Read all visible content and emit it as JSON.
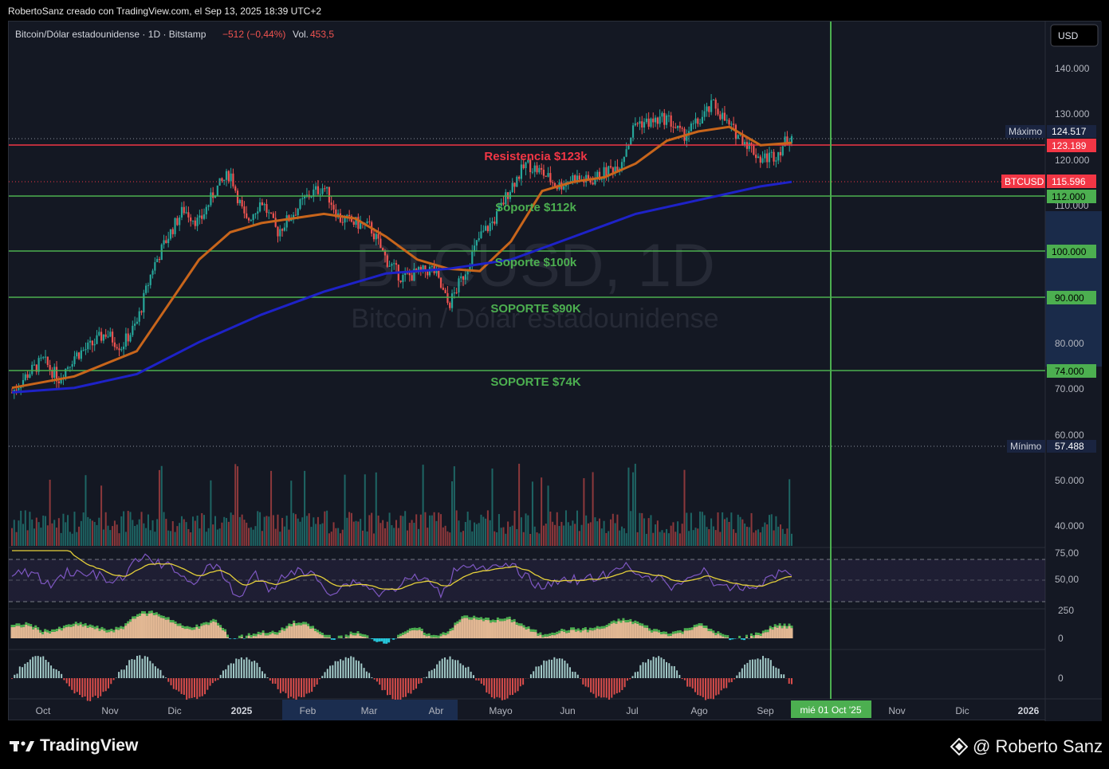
{
  "credit": "RobertoSanz creado con TradingView.com, el Sep 13, 2025 18:39 UTC+2",
  "header": {
    "symbol": "Bitcoin/Dólar estadounidense · 1D · Bitstamp",
    "change": "−512 (−0,44%)",
    "vol_label": "Vol.",
    "vol_value": "453,5",
    "currency_button": "USD"
  },
  "watermark": {
    "line1": "BTCUSD, 1D",
    "line2": "Bitcoin / Dólar estadounidense"
  },
  "price_labels": {
    "max_tag": "Máximo",
    "max_value": "124.517",
    "res_value": "123.189",
    "sym_tag": "BTCUSD",
    "sym_value": "115.596",
    "s112": "112.000",
    "s100": "100.000",
    "s90": "90.000",
    "s74": "74.000",
    "min_tag": "Mínimo",
    "min_value": "57.488"
  },
  "y_ticks": [
    "140.000",
    "130.000",
    "120.000",
    "110.000",
    "80.000",
    "70.000",
    "60.000",
    "50.000",
    "40.000"
  ],
  "rsi_ticks": [
    "75,00",
    "50,00"
  ],
  "macd_ticks": [
    "250",
    "0"
  ],
  "osc_ticks": [
    "0"
  ],
  "x_ticks": [
    "Oct",
    "Nov",
    "Dic",
    "2025",
    "Feb",
    "Mar",
    "Abr",
    "Mayo",
    "Jun",
    "Jul",
    "Ago",
    "Sep",
    "Nov",
    "Dic",
    "2026"
  ],
  "cursor_date": "mié 01 Oct '25",
  "annotations": {
    "resistance": "Resistencia $123k",
    "s112": "Soporte $112k",
    "s100": "Soporte $100k",
    "s90": "SOPORTE $90K",
    "s74": "SOPORTE $74K"
  },
  "colors": {
    "up": "#26a69a",
    "down": "#ef5350",
    "green_line": "#4caf50",
    "red_line": "#f23645",
    "ma50": "#c8651b",
    "ma200": "#1e22c8",
    "rsi": "#7e57c2",
    "rsi_ma": "#e5d03a"
  },
  "footer": {
    "brand": "TradingView",
    "author": "@ Roberto Sanz"
  },
  "chart_data": {
    "type": "line",
    "title": "Bitcoin/Dólar estadounidense · 1D · Bitstamp",
    "ylim": [
      35000,
      147000
    ],
    "y_ticks": [
      40000,
      50000,
      60000,
      70000,
      80000,
      90000,
      100000,
      110000,
      120000,
      130000,
      140000
    ],
    "x_months": [
      "Oct",
      "Nov",
      "Dic",
      "2025",
      "Feb",
      "Mar",
      "Abr",
      "Mayo",
      "Jun",
      "Jul",
      "Ago",
      "Sep",
      "Nov",
      "Dic",
      "2026"
    ],
    "levels": [
      {
        "name": "Resistencia $123k",
        "value": 123189
      },
      {
        "name": "Soporte $112k",
        "value": 112000
      },
      {
        "name": "Soporte $100k",
        "value": 100000
      },
      {
        "name": "SOPORTE $90K",
        "value": 90000
      },
      {
        "name": "SOPORTE $74K",
        "value": 74000
      }
    ],
    "max": 124517,
    "min": 57488,
    "last": 115596,
    "price_path": [
      [
        0,
        59000
      ],
      [
        0.5,
        63000
      ],
      [
        1,
        66000
      ],
      [
        1.5,
        62000
      ],
      [
        2,
        67000
      ],
      [
        2.5,
        69000
      ],
      [
        3,
        72000
      ],
      [
        3.5,
        69000
      ],
      [
        4,
        74000
      ],
      [
        4.5,
        86000
      ],
      [
        5,
        93000
      ],
      [
        5.5,
        99000
      ],
      [
        6,
        96000
      ],
      [
        6.5,
        103000
      ],
      [
        7,
        107000
      ],
      [
        7.5,
        96000
      ],
      [
        8,
        101000
      ],
      [
        8.5,
        94000
      ],
      [
        9,
        98000
      ],
      [
        9.5,
        102000
      ],
      [
        10,
        104000
      ],
      [
        10.5,
        97000
      ],
      [
        11,
        96000
      ],
      [
        11.5,
        95000
      ],
      [
        12,
        88000
      ],
      [
        12.5,
        84000
      ],
      [
        13,
        85000
      ],
      [
        13.5,
        86000
      ],
      [
        14,
        78000
      ],
      [
        14.5,
        85000
      ],
      [
        15,
        93000
      ],
      [
        15.5,
        97000
      ],
      [
        16,
        104000
      ],
      [
        16.5,
        109000
      ],
      [
        17,
        107000
      ],
      [
        17.5,
        104000
      ],
      [
        18,
        106000
      ],
      [
        18.5,
        105000
      ],
      [
        19,
        107000
      ],
      [
        19.5,
        109000
      ],
      [
        20,
        118000
      ],
      [
        20.5,
        118000
      ],
      [
        21,
        119000
      ],
      [
        21.5,
        115000
      ],
      [
        22,
        118000
      ],
      [
        22.5,
        122000
      ],
      [
        23,
        117000
      ],
      [
        23.5,
        114000
      ],
      [
        24,
        110000
      ],
      [
        24.5,
        111000
      ],
      [
        25,
        115500
      ]
    ],
    "ma50_path": [
      [
        0,
        60000
      ],
      [
        2,
        62500
      ],
      [
        4,
        68000
      ],
      [
        5,
        78000
      ],
      [
        6,
        88000
      ],
      [
        7,
        94000
      ],
      [
        8,
        96000
      ],
      [
        9,
        97000
      ],
      [
        10,
        98000
      ],
      [
        11,
        97000
      ],
      [
        12,
        93000
      ],
      [
        13,
        88000
      ],
      [
        14,
        86000
      ],
      [
        15,
        85500
      ],
      [
        16,
        92000
      ],
      [
        17,
        103000
      ],
      [
        18,
        105000
      ],
      [
        19,
        106000
      ],
      [
        20,
        109000
      ],
      [
        21,
        114000
      ],
      [
        22,
        116000
      ],
      [
        23,
        117000
      ],
      [
        24,
        113000
      ],
      [
        25,
        113500
      ]
    ],
    "ma200_path": [
      [
        0,
        59000
      ],
      [
        2,
        60000
      ],
      [
        4,
        63000
      ],
      [
        6,
        70000
      ],
      [
        8,
        76000
      ],
      [
        10,
        81000
      ],
      [
        12,
        85000
      ],
      [
        14,
        86000
      ],
      [
        16,
        88000
      ],
      [
        18,
        93000
      ],
      [
        20,
        98000
      ],
      [
        22,
        101000
      ],
      [
        24,
        104000
      ],
      [
        25,
        105000
      ]
    ]
  }
}
